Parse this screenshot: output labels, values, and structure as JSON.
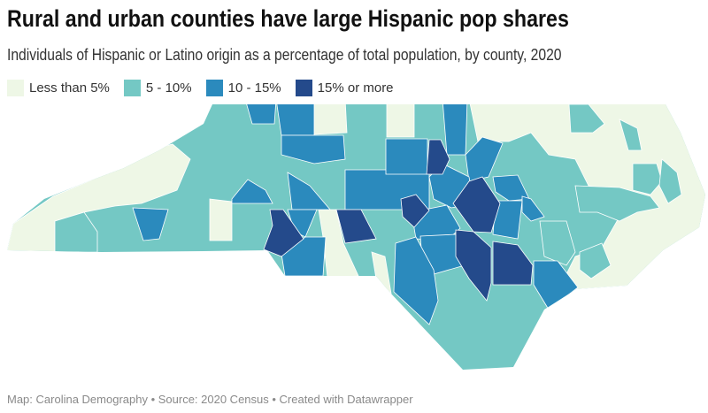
{
  "header": {
    "title": "Rural and urban counties have large Hispanic pop shares",
    "subtitle": "Individuals of Hispanic or Latino origin as a percentage of total population, by county, 2020"
  },
  "legend": [
    {
      "label": "Less than 5%",
      "color": "#eef7e6"
    },
    {
      "label": "5 - 10%",
      "color": "#74c8c4"
    },
    {
      "label": "10 - 15%",
      "color": "#2b8abd"
    },
    {
      "label": "15% or more",
      "color": "#244a8b"
    }
  ],
  "map": {
    "region": "North Carolina counties",
    "border_color": "#ffffff"
  },
  "footer": {
    "text": "Map: Carolina Demography • Source: 2020 Census • Created with Datawrapper"
  }
}
